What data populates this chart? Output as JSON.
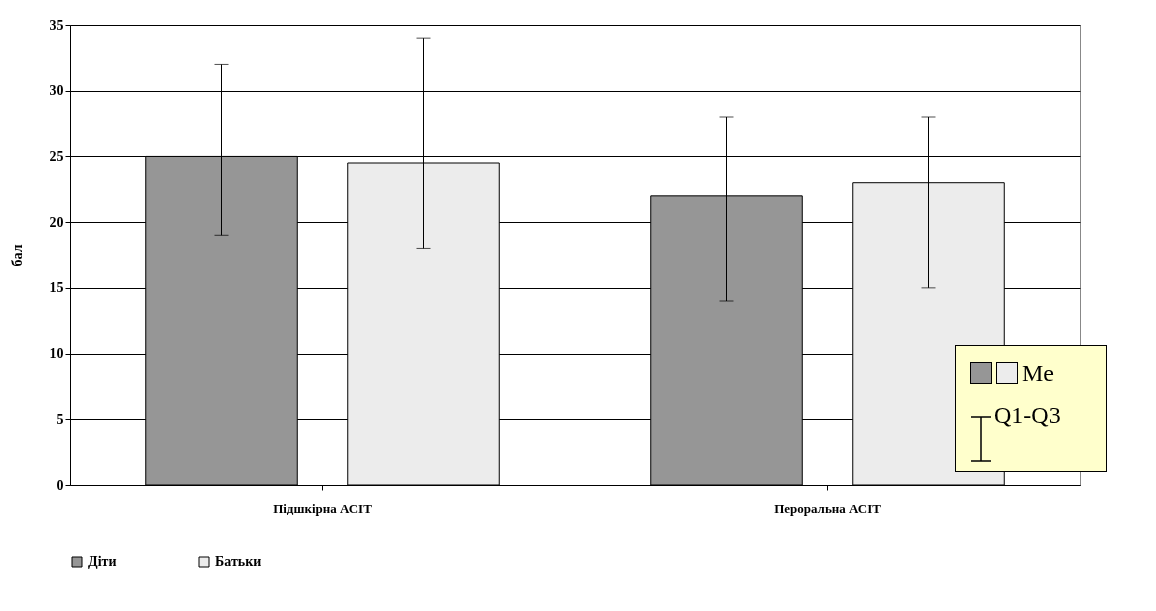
{
  "chart_data": {
    "type": "bar",
    "ylabel": "бал",
    "categories": [
      "Підшкірна АСІТ",
      "Пероральна АСІТ"
    ],
    "series": [
      {
        "name": "Діти",
        "color": "#969696",
        "values": [
          25,
          22
        ],
        "errors": [
          [
            19,
            32
          ],
          [
            14,
            28
          ]
        ]
      },
      {
        "name": "Батьки",
        "color": "#ececec",
        "values": [
          24.5,
          23
        ],
        "errors": [
          [
            18,
            34
          ],
          [
            15,
            28
          ]
        ]
      }
    ],
    "ylim": [
      0,
      35
    ],
    "yticks": [
      0,
      5,
      10,
      15,
      20,
      25,
      30,
      35
    ],
    "grid": "y",
    "legend": "bottom",
    "annotations": [
      "Me",
      "Q1-Q3"
    ]
  }
}
